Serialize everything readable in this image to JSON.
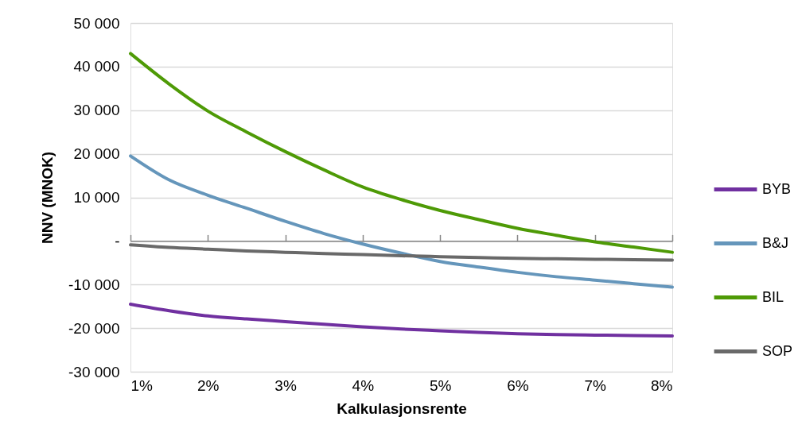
{
  "chart_data": {
    "type": "line",
    "xlabel": "Kalkulasjonsrente",
    "ylabel": "NNV (MNOK)",
    "x": [
      1,
      1.5,
      2,
      2.5,
      3,
      3.5,
      4,
      4.5,
      5,
      5.5,
      6,
      6.5,
      7,
      7.5,
      8
    ],
    "series": [
      {
        "name": "BYB",
        "color": "#7030a0",
        "values": [
          -14500,
          -16000,
          -17200,
          -17900,
          -18500,
          -19100,
          -19700,
          -20200,
          -20600,
          -21000,
          -21300,
          -21500,
          -21600,
          -21700,
          -21800
        ]
      },
      {
        "name": "B&J",
        "color": "#6596bb",
        "values": [
          19500,
          14000,
          10500,
          7500,
          4500,
          1700,
          -700,
          -2800,
          -4700,
          -6000,
          -7200,
          -8200,
          -9000,
          -9800,
          -10600
        ]
      },
      {
        "name": "BIL",
        "color": "#4e9a06",
        "values": [
          43000,
          36000,
          29800,
          25000,
          20500,
          16300,
          12400,
          9500,
          7000,
          4900,
          2900,
          1300,
          -200,
          -1400,
          -2600
        ]
      },
      {
        "name": "SOP",
        "color": "#696969",
        "values": [
          -900,
          -1500,
          -1900,
          -2300,
          -2600,
          -2900,
          -3100,
          -3400,
          -3600,
          -3800,
          -4000,
          -4100,
          -4200,
          -4300,
          -4400
        ]
      }
    ],
    "xlim": [
      1,
      8
    ],
    "xticks": [
      {
        "value": 1,
        "label": "1%"
      },
      {
        "value": 2,
        "label": "2%"
      },
      {
        "value": 3,
        "label": "3%"
      },
      {
        "value": 4,
        "label": "4%"
      },
      {
        "value": 5,
        "label": "5%"
      },
      {
        "value": 6,
        "label": "6%"
      },
      {
        "value": 7,
        "label": "7%"
      },
      {
        "value": 8,
        "label": "8%"
      }
    ],
    "ylim": [
      -30000,
      50000
    ],
    "yticks": [
      {
        "value": -30000,
        "label": "-30 000"
      },
      {
        "value": -20000,
        "label": "-20 000"
      },
      {
        "value": -10000,
        "label": "-10 000"
      },
      {
        "value": 0,
        "label": "-"
      },
      {
        "value": 10000,
        "label": "10 000"
      },
      {
        "value": 20000,
        "label": "20 000"
      },
      {
        "value": 30000,
        "label": "30 000"
      },
      {
        "value": 40000,
        "label": "40 000"
      },
      {
        "value": 50000,
        "label": "50 000"
      }
    ],
    "grid": "y",
    "legend": "right",
    "line_style": "solid",
    "marker": "none"
  }
}
